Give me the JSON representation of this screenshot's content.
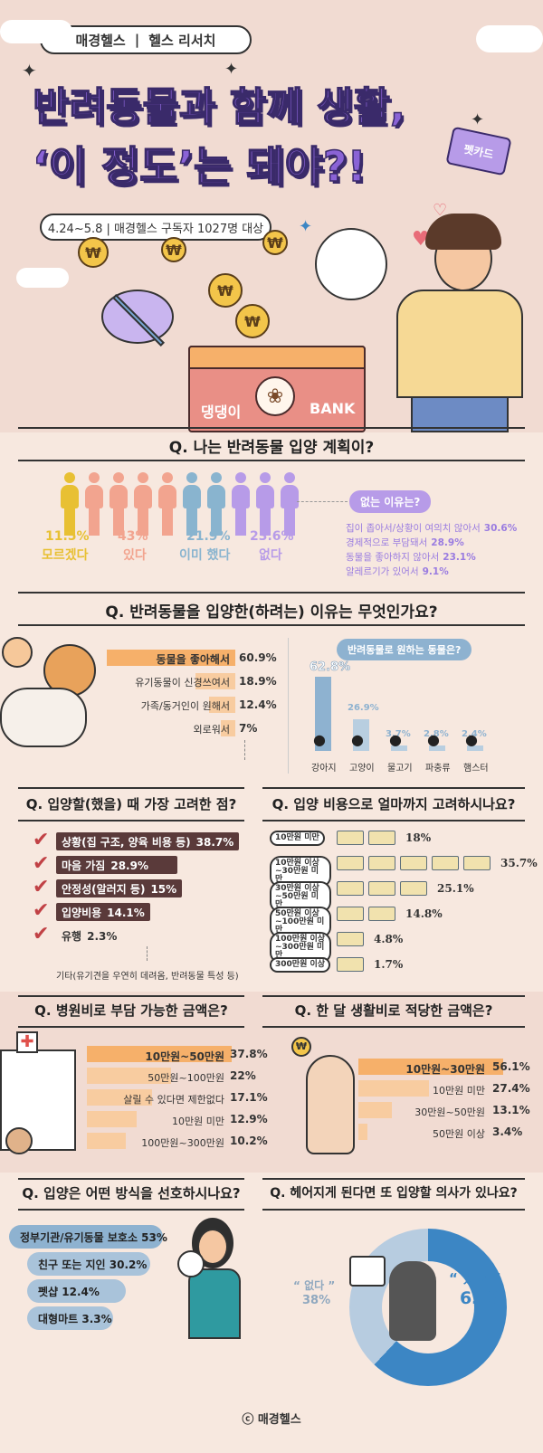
{
  "header": {
    "brand": "매경헬스",
    "divider": "|",
    "series": "헬스 리서치",
    "title_line1": "반려동물과 함께 생활,",
    "title_line2": "‘이 정도’는 돼야?!",
    "survey": "4.24~5.8 | 매경헬스 구독자 1027명 대상",
    "bank_name": "댕댕이",
    "bank_label": "BANK",
    "card_label": "펫카드"
  },
  "q1": {
    "title": "Q. 나는 반려동물 입양 계획이?",
    "groups": [
      {
        "value": "11.5%",
        "label": "모르겠다",
        "color": "#e8c033"
      },
      {
        "value": "43%",
        "label": "있다",
        "color": "#f2a48f"
      },
      {
        "value": "21.9%",
        "label": "이미 했다",
        "color": "#89b4cf"
      },
      {
        "value": "23.6%",
        "label": "없다",
        "color": "#b79be8"
      }
    ],
    "reason_title": "없는 이유는?",
    "reasons": [
      {
        "text": "집이 좁아서/상황이 여의치 않아서",
        "pct": "30.6%"
      },
      {
        "text": "경제적으로 부담돼서",
        "pct": "28.9%"
      },
      {
        "text": "동물을 좋아하지 않아서",
        "pct": "23.1%"
      },
      {
        "text": "알레르기가 있어서",
        "pct": "9.1%"
      }
    ]
  },
  "q2": {
    "title": "Q. 반려동물을 입양한(하려는) 이유는 무엇인가요?",
    "reasons": [
      {
        "label": "동물을 좋아해서",
        "pct": "60.9%",
        "value": 60.9
      },
      {
        "label": "유기동물이 신경쓰여서",
        "pct": "18.9%",
        "value": 18.9
      },
      {
        "label": "가족/동거인이 원해서",
        "pct": "12.4%",
        "value": 12.4
      },
      {
        "label": "외로워서",
        "pct": "7%",
        "value": 7
      }
    ],
    "animals_title": "반려동물로 원하는 동물은?",
    "animals": [
      {
        "label": "강아지",
        "pct": "62.8%",
        "value": 62.8
      },
      {
        "label": "고양이",
        "pct": "26.9%",
        "value": 26.9
      },
      {
        "label": "물고기",
        "pct": "3.7%",
        "value": 3.7
      },
      {
        "label": "파충류",
        "pct": "2.8%",
        "value": 2.8
      },
      {
        "label": "햄스터",
        "pct": "2.4%",
        "value": 2.4
      }
    ]
  },
  "q3": {
    "title": "Q. 입양할(했을) 때 가장 고려한 점?",
    "items": [
      {
        "label": "상황(집 구조, 양육 비용 등)",
        "pct": "38.7%",
        "value": 38.7
      },
      {
        "label": "마음 가짐",
        "pct": "28.9%",
        "value": 28.9
      },
      {
        "label": "안정성(알러지 등)",
        "pct": "15%",
        "value": 15
      },
      {
        "label": "입양비용",
        "pct": "14.1%",
        "value": 14.1
      },
      {
        "label": "유행",
        "pct": "2.3%",
        "value": 2.3
      }
    ],
    "other": "기타(유기견을 우연히 데려옴, 반려동물 특성 등)"
  },
  "q4": {
    "title": "Q. 입양 비용으로 얼마까지 고려하시나요?",
    "items": [
      {
        "label": "10만원 미만",
        "pct": "18%",
        "value": 18
      },
      {
        "label": "10만원 이상~30만원 미만",
        "pct": "35.7%",
        "value": 35.7
      },
      {
        "label": "30만원 이상~50만원 미만",
        "pct": "25.1%",
        "value": 25.1
      },
      {
        "label": "50만원 이상~100만원 미만",
        "pct": "14.8%",
        "value": 14.8
      },
      {
        "label": "100만원 이상~300만원 미만",
        "pct": "4.8%",
        "value": 4.8
      },
      {
        "label": "300만원 이상",
        "pct": "1.7%",
        "value": 1.7
      }
    ]
  },
  "q5": {
    "title": "Q. 병원비로 부담 가능한 금액은?",
    "items": [
      {
        "label": "10만원~50만원",
        "pct": "37.8%",
        "value": 37.8
      },
      {
        "label": "50만원~100만원",
        "pct": "22%",
        "value": 22
      },
      {
        "label": "살릴 수 있다면 제한없다",
        "pct": "17.1%",
        "value": 17.1
      },
      {
        "label": "10만원 미만",
        "pct": "12.9%",
        "value": 12.9
      },
      {
        "label": "100만원~300만원",
        "pct": "10.2%",
        "value": 10.2
      }
    ]
  },
  "q6": {
    "title": "Q. 한 달 생활비로 적당한 금액은?",
    "items": [
      {
        "label": "10만원~30만원",
        "pct": "56.1%",
        "value": 56.1
      },
      {
        "label": "10만원 미만",
        "pct": "27.4%",
        "value": 27.4
      },
      {
        "label": "30만원~50만원",
        "pct": "13.1%",
        "value": 13.1
      },
      {
        "label": "50만원 이상",
        "pct": "3.4%",
        "value": 3.4
      }
    ]
  },
  "q7": {
    "title": "Q. 입양은 어떤 방식을 선호하시나요?",
    "items": [
      {
        "label": "정부기관/유기동물 보호소 53%",
        "value": 53
      },
      {
        "label": "친구 또는 지인 30.2%",
        "value": 30.2
      },
      {
        "label": "펫샵 12.4%",
        "value": 12.4
      },
      {
        "label": "대형마트 3.3%",
        "value": 3.3
      }
    ]
  },
  "q8": {
    "title": "Q. 헤어지게 된다면 또 입양할 의사가 있나요?",
    "no_label": "“ 없다 ”",
    "no_pct": "38%",
    "yes_label": "“ 있다 ”",
    "yes_pct": "62%",
    "yes_value": 62
  },
  "footer": "ⓒ 매경헬스",
  "colors": {
    "accent": "#f6b06a",
    "purple": "#8a63d6",
    "blue": "#3c86c4"
  }
}
